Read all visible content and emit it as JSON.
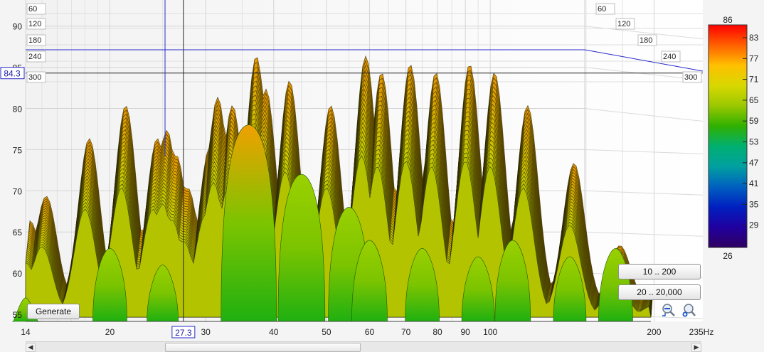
{
  "chart_data": {
    "type": "waterfall",
    "x_axis": {
      "min": 14,
      "max": 235,
      "scale": "log",
      "ticks": [
        "14",
        "20",
        "30",
        "40",
        "50",
        "60",
        "70",
        "80",
        "90",
        "100",
        "200"
      ],
      "end_label": "235Hz",
      "cursor_readout": "27.3",
      "cursor_value": 27.3
    },
    "y_axis": {
      "min": 53,
      "max": 92,
      "ticks": [
        "55",
        "60",
        "65",
        "70",
        "75",
        "80",
        "85",
        "90"
      ],
      "cursor_readout": "84.3",
      "cursor_value": 84.3
    },
    "time_axis": {
      "ticks": [
        "60",
        "120",
        "180",
        "240",
        "300"
      ]
    },
    "color_scale": {
      "max_label": "86",
      "min_label": "26",
      "labels": [
        "83",
        "77",
        "71",
        "65",
        "59",
        "53",
        "47",
        "41",
        "35",
        "29"
      ],
      "colors": [
        "#ff0000",
        "#ff6000",
        "#ffc000",
        "#d8d800",
        "#9ac800",
        "#30b000",
        "#00b070",
        "#00a0a0",
        "#0060c0",
        "#0020c0",
        "#2000a0",
        "#300060"
      ]
    },
    "surface_peaks": [
      {
        "f": 14,
        "level": 66
      },
      {
        "f": 15,
        "level": 69
      },
      {
        "f": 18,
        "level": 76
      },
      {
        "f": 21,
        "level": 80
      },
      {
        "f": 24,
        "level": 76
      },
      {
        "f": 25,
        "level": 77
      },
      {
        "f": 26,
        "level": 74
      },
      {
        "f": 27.3,
        "level": 70
      },
      {
        "f": 30,
        "level": 75
      },
      {
        "f": 31,
        "level": 81
      },
      {
        "f": 33,
        "level": 80
      },
      {
        "f": 36.5,
        "level": 86
      },
      {
        "f": 38,
        "level": 82
      },
      {
        "f": 42,
        "level": 83
      },
      {
        "f": 50,
        "level": 80
      },
      {
        "f": 58,
        "level": 86
      },
      {
        "f": 62,
        "level": 84
      },
      {
        "f": 70,
        "level": 85
      },
      {
        "f": 78,
        "level": 84
      },
      {
        "f": 90,
        "level": 85
      },
      {
        "f": 100,
        "level": 84
      },
      {
        "f": 115,
        "level": 80
      },
      {
        "f": 140,
        "level": 73
      },
      {
        "f": 170,
        "level": 63
      },
      {
        "f": 200,
        "level": 58
      }
    ],
    "front_slice_peaks": [
      {
        "f": 14,
        "level": 57
      },
      {
        "f": 20,
        "level": 63
      },
      {
        "f": 25,
        "level": 61
      },
      {
        "f": 36,
        "level": 78
      },
      {
        "f": 45,
        "level": 72
      },
      {
        "f": 55,
        "level": 68
      },
      {
        "f": 60,
        "level": 64
      },
      {
        "f": 75,
        "level": 63
      },
      {
        "f": 95,
        "level": 62
      },
      {
        "f": 110,
        "level": 64
      },
      {
        "f": 140,
        "level": 62
      },
      {
        "f": 170,
        "level": 63
      }
    ]
  },
  "buttons": {
    "generate": "Generate",
    "range_1": "10 .. 200",
    "range_2": "20 .. 20,000"
  },
  "icons": {
    "zoom_out": "zoom-out-icon",
    "zoom_in": "zoom-in-icon"
  }
}
